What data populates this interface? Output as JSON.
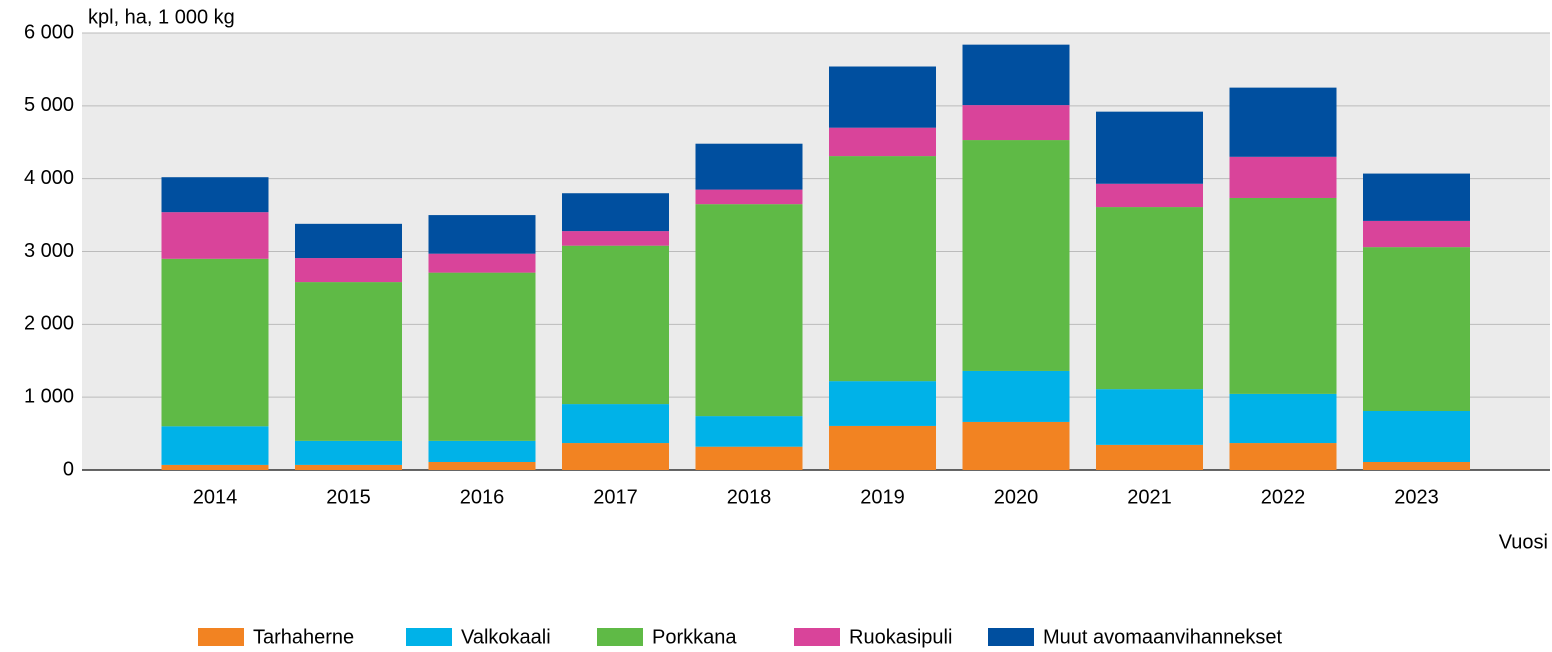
{
  "chart_data": {
    "type": "stacked_bar",
    "y_axis_label": "kpl, ha, 1 000 kg",
    "x_axis_label": "Vuosi",
    "categories": [
      "2014",
      "2015",
      "2016",
      "2017",
      "2018",
      "2019",
      "2020",
      "2021",
      "2022",
      "2023"
    ],
    "series": [
      {
        "name": "Tarhaherne",
        "color": "#f28322",
        "values": [
          70,
          70,
          110,
          370,
          320,
          605,
          660,
          345,
          370,
          110
        ]
      },
      {
        "name": "Valkokaali",
        "color": "#00b2e8",
        "values": [
          530,
          330,
          290,
          535,
          420,
          615,
          700,
          765,
          675,
          700
        ]
      },
      {
        "name": "Porkkana",
        "color": "#5fba46",
        "values": [
          2300,
          2180,
          2310,
          2175,
          2910,
          3090,
          3170,
          2500,
          2690,
          2250
        ]
      },
      {
        "name": "Ruokasipuli",
        "color": "#d9449a",
        "values": [
          640,
          330,
          260,
          200,
          200,
          390,
          480,
          320,
          565,
          360
        ]
      },
      {
        "name": "Muut avomaanvihannekset",
        "color": "#004f9f",
        "values": [
          480,
          470,
          530,
          520,
          630,
          840,
          830,
          990,
          950,
          650
        ]
      }
    ],
    "ylim": [
      0,
      6000
    ],
    "yticks": [
      0,
      {
        "value": 1000,
        "label": "1 000"
      },
      {
        "value": 2000,
        "label": "2 000"
      },
      {
        "value": 3000,
        "label": "3 000"
      },
      {
        "value": 4000,
        "label": "4 000"
      },
      {
        "value": 5000,
        "label": "5 000"
      },
      {
        "value": 6000,
        "label": "6 000"
      }
    ],
    "grid": true,
    "legend": "bottom"
  }
}
